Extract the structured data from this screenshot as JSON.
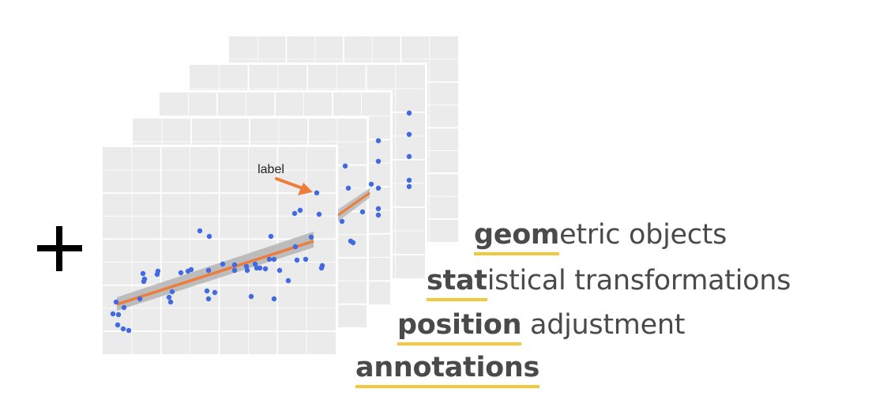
{
  "plot_label": "label",
  "plus_symbol": "+",
  "terms": [
    {
      "highlight": "geom",
      "rest": "etric objects"
    },
    {
      "highlight": "stat",
      "rest": "istical transformations"
    },
    {
      "highlight": "position",
      "rest": " adjustment"
    },
    {
      "highlight": "annotations",
      "rest": ""
    }
  ],
  "colors": {
    "panel_bg": "#ebebeb",
    "grid": "#ffffff",
    "points": "#4169e1",
    "trend_line": "#ed7d3a",
    "confidence_band": "#b4b4b4",
    "highlight_underline": "#f2c83c",
    "text": "#4a4a4a"
  }
}
